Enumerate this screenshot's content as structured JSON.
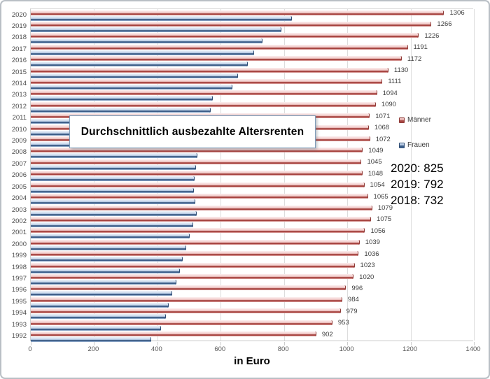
{
  "chart": {
    "title": "Durchschnittlich ausbezahlte Altersrenten",
    "xlabel": "in Euro",
    "legend": {
      "maenner": "Männer",
      "frauen": "Frauen"
    },
    "annotation": {
      "lines": [
        "2020: 825",
        "2019: 792",
        "2018: 732"
      ]
    },
    "colors": {
      "maenner_dark": "#9e3b38",
      "maenner_light": "#f0c9c8",
      "frauen_dark": "#315179",
      "frauen_light": "#c3d3e8",
      "grid": "#dddddd",
      "text": "#3f3f3f"
    }
  },
  "chart_data": {
    "type": "bar",
    "orientation": "horizontal",
    "title": "Durchschnittlich ausbezahlte Altersrenten",
    "xlabel": "in Euro",
    "xlim": [
      0,
      1400
    ],
    "xticks": [
      0,
      200,
      400,
      600,
      800,
      1000,
      1200,
      1400
    ],
    "grid": true,
    "legend_position": "right-inside",
    "categories": [
      "2020",
      "2019",
      "2018",
      "2017",
      "2016",
      "2015",
      "2014",
      "2013",
      "2012",
      "2011",
      "2010",
      "2009",
      "2008",
      "2007",
      "2006",
      "2005",
      "2004",
      "2003",
      "2002",
      "2001",
      "2000",
      "1999",
      "1998",
      "1997",
      "1996",
      "1995",
      "1994",
      "1993",
      "1992"
    ],
    "series": [
      {
        "name": "Männer",
        "color": "#9e3b38",
        "data_labels_shown": true,
        "values": [
          1306,
          1266,
          1226,
          1191,
          1172,
          1130,
          1111,
          1094,
          1090,
          1071,
          1068,
          1072,
          1049,
          1045,
          1048,
          1054,
          1065,
          1079,
          1075,
          1056,
          1039,
          1036,
          1023,
          1020,
          996,
          984,
          979,
          953,
          902
        ]
      },
      {
        "name": "Frauen",
        "color": "#315179",
        "data_labels_shown": false,
        "labeled_values_in_annotation": {
          "2020": 825,
          "2019": 792,
          "2018": 732
        },
        "values": [
          825,
          792,
          732,
          705,
          685,
          655,
          638,
          575,
          568,
          556,
          546,
          537,
          527,
          522,
          518,
          516,
          520,
          524,
          514,
          503,
          492,
          481,
          470,
          459,
          446,
          436,
          426,
          411,
          381
        ]
      }
    ]
  }
}
